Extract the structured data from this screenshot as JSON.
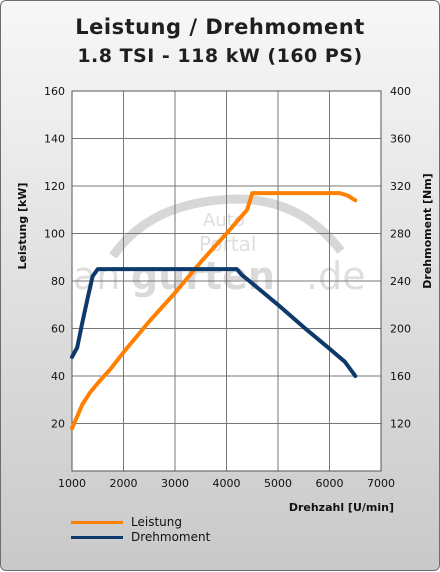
{
  "header": {
    "title": "Leistung / Drehmoment",
    "subtitle": "1.8 TSI - 118 kW (160 PS)"
  },
  "watermark": {
    "line1": "Auto",
    "line2": "Portal",
    "text_a": "an",
    "text_b": "gurten",
    "text_c": ".de"
  },
  "chart_data": {
    "type": "line",
    "title": "Leistung / Drehmoment",
    "subtitle": "1.8 TSI - 118 kW (160 PS)",
    "xlabel": "Drehzahl [U/min]",
    "ylabel_left": "Leistung [kW]",
    "ylabel_right": "Drehmoment [Nm]",
    "xlim": [
      1000,
      7000
    ],
    "ylim_left": [
      0,
      160
    ],
    "ylim_right": [
      80,
      400
    ],
    "x_ticks": [
      1000,
      2000,
      3000,
      4000,
      5000,
      6000,
      7000
    ],
    "y_ticks_left": [
      20,
      40,
      60,
      80,
      100,
      120,
      140,
      160
    ],
    "y_ticks_right": [
      120,
      160,
      200,
      240,
      280,
      320,
      360,
      400
    ],
    "grid": true,
    "legend_position": "bottom-left",
    "series": [
      {
        "name": "Leistung",
        "axis": "left",
        "color": "#ff8000",
        "x": [
          1000,
          1100,
          1200,
          1350,
          1500,
          1750,
          2000,
          2500,
          3000,
          3500,
          4000,
          4400,
          4500,
          5000,
          5500,
          6000,
          6200,
          6350,
          6500
        ],
        "y": [
          18,
          23,
          28,
          33,
          37,
          43,
          50,
          63,
          75,
          88,
          100,
          110,
          117,
          117,
          117,
          117,
          117,
          116,
          114
        ]
      },
      {
        "name": "Drehmoment",
        "axis": "right",
        "color": "#0d3a6a",
        "x": [
          1000,
          1100,
          1200,
          1300,
          1400,
          1500,
          1750,
          2500,
          3500,
          4200,
          4300,
          4500,
          5000,
          5500,
          6000,
          6300,
          6500
        ],
        "y": [
          176,
          184,
          205,
          225,
          244,
          250,
          250,
          250,
          250,
          250,
          245,
          238,
          220,
          201,
          183,
          172,
          160
        ]
      }
    ]
  }
}
